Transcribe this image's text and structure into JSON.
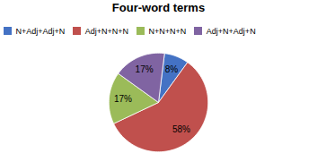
{
  "chart_data": {
    "type": "pie",
    "title": "Four-word terms",
    "categories": [
      "N+Adj+Adj+N",
      "Adj+N+N+N",
      "N+N+N+N",
      "Adj+N+Adj+N"
    ],
    "values": [
      8,
      58,
      17,
      17
    ],
    "value_labels": [
      "8%",
      "58%",
      "17%",
      "17%"
    ],
    "colors": [
      "#4472C4",
      "#C0504D",
      "#9BBB59",
      "#8064A2"
    ],
    "data_labels": true,
    "legend": "top"
  }
}
